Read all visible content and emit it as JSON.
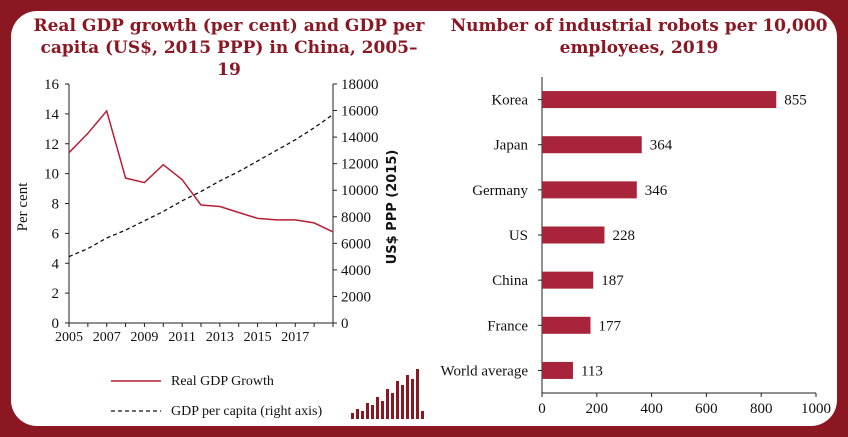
{
  "brand": {
    "accent": "#8a1722",
    "bar_color": "#a8243a",
    "line_color": "#b71f35"
  },
  "logo": {
    "icon": "bar-chart-icon"
  },
  "chart_data": [
    {
      "type": "line",
      "title": "Real GDP growth (per cent) and GDP per capita (US$, 2015 PPP) in China, 2005–19",
      "ylabel": "Per cent",
      "y2label": "US$ PPP (2015)",
      "ylim": [
        0,
        16
      ],
      "y2lim": [
        0,
        18000
      ],
      "yticks": [
        "0",
        "2",
        "4",
        "6",
        "8",
        "10",
        "12",
        "14",
        "16"
      ],
      "y2ticks": [
        "0",
        "2000",
        "4000",
        "6000",
        "8000",
        "10000",
        "12000",
        "14000",
        "16000",
        "18000"
      ],
      "xticks": [
        "2005",
        "2007",
        "2009",
        "2011",
        "2013",
        "2015",
        "2017"
      ],
      "xlim": [
        2005,
        2019
      ],
      "grid": false,
      "legend_position": "bottom",
      "series": [
        {
          "name": "Real GDP Growth",
          "axis": "left",
          "style": "solid",
          "x": [
            2005,
            2006,
            2007,
            2008,
            2009,
            2010,
            2011,
            2012,
            2013,
            2014,
            2015,
            2016,
            2017,
            2018,
            2019
          ],
          "values": [
            11.4,
            12.7,
            14.2,
            9.7,
            9.4,
            10.6,
            9.6,
            7.9,
            7.8,
            7.4,
            7.0,
            6.9,
            6.9,
            6.7,
            6.1
          ]
        },
        {
          "name": "GDP per capita (right axis)",
          "axis": "right",
          "style": "dashed",
          "x": [
            2005,
            2006,
            2007,
            2008,
            2009,
            2010,
            2011,
            2012,
            2013,
            2014,
            2015,
            2016,
            2017,
            2018,
            2019
          ],
          "values": [
            5000,
            5600,
            6400,
            7000,
            7700,
            8400,
            9200,
            9900,
            10700,
            11400,
            12200,
            13000,
            13800,
            14700,
            15700
          ]
        }
      ]
    },
    {
      "type": "bar",
      "orientation": "horizontal",
      "title": "Number of industrial robots per 10,000 employees, 2019",
      "categories": [
        "Korea",
        "Japan",
        "Germany",
        "US",
        "China",
        "France",
        "World average"
      ],
      "values": [
        855,
        364,
        346,
        228,
        187,
        177,
        113
      ],
      "xlim": [
        0,
        1000
      ],
      "xticks": [
        "0",
        "200",
        "400",
        "600",
        "800",
        "1000"
      ],
      "grid": false
    }
  ]
}
